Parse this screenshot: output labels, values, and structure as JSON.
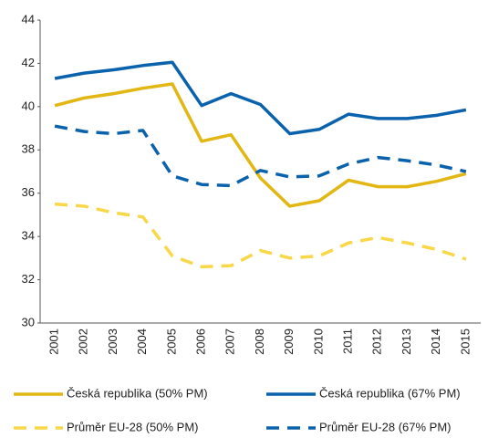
{
  "chart_data": {
    "type": "line",
    "categories": [
      "2001",
      "2002",
      "2003",
      "2004",
      "2005",
      "2006",
      "2007",
      "2008",
      "2009",
      "2010",
      "2011",
      "2012",
      "2013",
      "2014",
      "2015"
    ],
    "series": [
      {
        "name": "Česká republika (50% PM)",
        "color": "#e2b713",
        "style": "solid",
        "values": [
          40.05,
          40.4,
          40.6,
          40.85,
          41.05,
          38.4,
          38.7,
          36.7,
          35.4,
          35.65,
          36.6,
          36.3,
          36.3,
          36.55,
          36.9
        ]
      },
      {
        "name": "Česká republika (67% PM)",
        "color": "#0a62ad",
        "style": "solid",
        "values": [
          41.3,
          41.55,
          41.7,
          41.9,
          42.05,
          40.05,
          40.6,
          40.1,
          38.75,
          38.95,
          39.65,
          39.45,
          39.45,
          39.6,
          39.85
        ]
      },
      {
        "name": "Průměr EU-28 (50% PM)",
        "color": "#f8d849",
        "style": "dashed",
        "values": [
          35.5,
          35.4,
          35.1,
          34.9,
          33.1,
          32.6,
          32.65,
          33.35,
          33.0,
          33.1,
          33.7,
          33.95,
          33.7,
          33.4,
          32.95
        ]
      },
      {
        "name": "Průměr EU-28 (67% PM)",
        "color": "#0a62ad",
        "style": "dashed",
        "values": [
          39.1,
          38.85,
          38.75,
          38.9,
          36.8,
          36.4,
          36.35,
          37.05,
          36.75,
          36.8,
          37.35,
          37.65,
          37.5,
          37.3,
          37.0
        ]
      }
    ],
    "ylim": [
      30,
      44
    ],
    "yticks": [
      30,
      32,
      34,
      36,
      38,
      40,
      42,
      44
    ],
    "grid": false
  }
}
